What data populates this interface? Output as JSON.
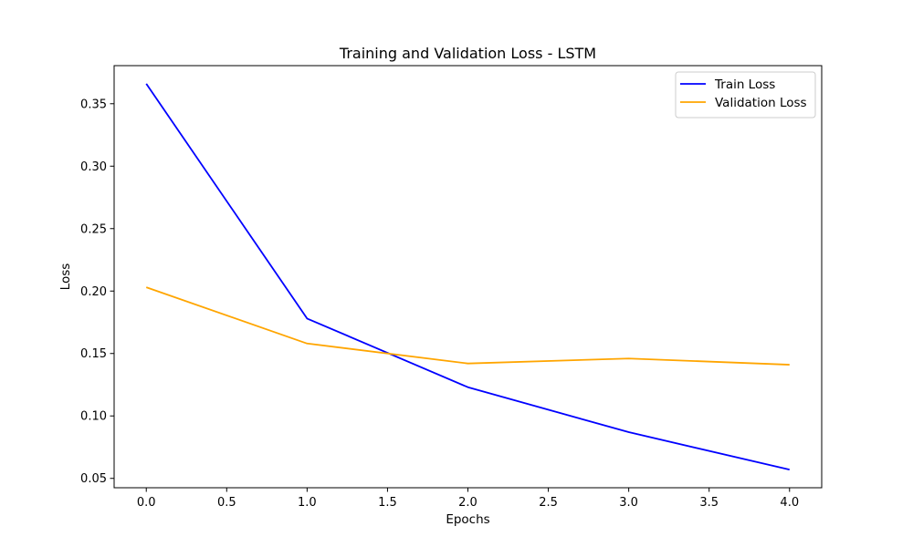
{
  "chart_data": {
    "type": "line",
    "title": "Training and Validation Loss - LSTM",
    "xlabel": "Epochs",
    "ylabel": "Loss",
    "x": [
      0,
      1,
      2,
      3,
      4
    ],
    "series": [
      {
        "name": "Train Loss",
        "color": "#0000ff",
        "values": [
          0.366,
          0.178,
          0.123,
          0.087,
          0.057
        ]
      },
      {
        "name": "Validation Loss",
        "color": "#ffa500",
        "values": [
          0.203,
          0.158,
          0.142,
          0.146,
          0.141
        ]
      }
    ],
    "xlim": [
      -0.2,
      4.2
    ],
    "ylim": [
      0.0425,
      0.3805
    ],
    "xticks": [
      "0.0",
      "0.5",
      "1.0",
      "1.5",
      "2.0",
      "2.5",
      "3.0",
      "3.5",
      "4.0"
    ],
    "yticks": [
      "0.05",
      "0.10",
      "0.15",
      "0.20",
      "0.25",
      "0.30",
      "0.35"
    ],
    "grid": false,
    "legend_position": "top-right"
  }
}
